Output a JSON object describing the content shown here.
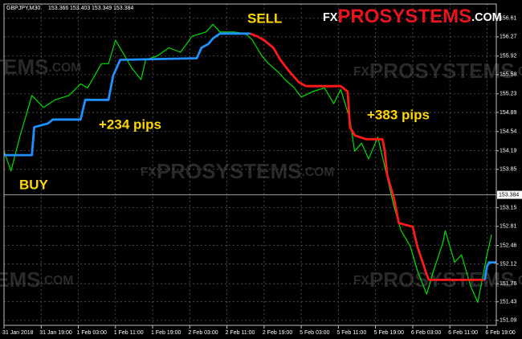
{
  "chart_data": {
    "type": "line",
    "header": {
      "symbol": "GBPJPY,M30",
      "ohlc": [
        153.366,
        153.403,
        153.349,
        153.384
      ]
    },
    "last_price": 153.384,
    "logo": {
      "prefix": "FX",
      "brand": "PROSYSTEMS",
      "suffix": ".COM"
    },
    "annotations": [
      "BUY",
      "+234 pips",
      "SELL",
      "+383 pips"
    ],
    "xlim": [
      0,
      212
    ],
    "xticks": [
      {
        "value": 0,
        "label": "31 Jan 2018"
      },
      {
        "value": 16,
        "label": "31 Jan 19:00"
      },
      {
        "value": 32,
        "label": "1 Feb 03:00"
      },
      {
        "value": 48,
        "label": "1 Feb 11:00"
      },
      {
        "value": 64,
        "label": "1 Feb 19:00"
      },
      {
        "value": 80,
        "label": "2 Feb 03:00"
      },
      {
        "value": 96,
        "label": "2 Feb 11:00"
      },
      {
        "value": 112,
        "label": "2 Feb 19:00"
      },
      {
        "value": 128,
        "label": "5 Feb 03:00"
      },
      {
        "value": 144,
        "label": "5 Feb 11:00"
      },
      {
        "value": 160,
        "label": "5 Feb 19:00"
      },
      {
        "value": 176,
        "label": "6 Feb 03:00"
      },
      {
        "value": 192,
        "label": "6 Feb 11:00"
      },
      {
        "value": 208,
        "label": "6 Feb 19:00"
      }
    ],
    "ylim": [
      151.0,
      156.87
    ],
    "yticks": [
      151.09,
      151.43,
      151.76,
      152.12,
      152.46,
      152.81,
      153.15,
      153.85,
      154.19,
      154.54,
      154.89,
      155.23,
      155.58,
      155.92,
      156.27,
      156.61
    ],
    "grid": true,
    "series": [
      {
        "color": "#00e000",
        "x": [
          0,
          3,
          7,
          12,
          17,
          22,
          28,
          33,
          36,
          42,
          45,
          48,
          52,
          55,
          59,
          61,
          66,
          71,
          76,
          81,
          87,
          90,
          93,
          99,
          104,
          107,
          111,
          114,
          118,
          121,
          125,
          128,
          133,
          138,
          142,
          145,
          149,
          151,
          154,
          157,
          161,
          164,
          168,
          171,
          175,
          178,
          182,
          185,
          189,
          190,
          194,
          197,
          201,
          204,
          208,
          210
        ],
        "values": [
          154.18,
          153.82,
          154.47,
          155.2,
          154.98,
          155.12,
          155.2,
          155.41,
          155.34,
          155.78,
          155.78,
          156.21,
          155.92,
          155.7,
          155.49,
          155.85,
          155.92,
          156.07,
          155.99,
          156.28,
          156.36,
          156.5,
          156.36,
          156.36,
          156.33,
          156.21,
          155.92,
          155.78,
          155.63,
          155.49,
          155.34,
          155.17,
          155.27,
          155.34,
          155.05,
          155.31,
          154.76,
          154.18,
          154.33,
          154.04,
          154.44,
          153.89,
          153.16,
          152.73,
          152.44,
          152.0,
          151.57,
          152.0,
          152.51,
          152.73,
          152.15,
          152.29,
          151.71,
          151.42,
          152.29,
          152.66
        ]
      },
      {
        "color": "#1e90ff",
        "x": [
          0,
          12,
          13,
          19,
          21,
          33,
          35,
          45,
          47,
          50,
          83,
          85,
          88,
          90,
          93,
          106
        ],
        "values": [
          154.11,
          154.11,
          154.62,
          154.69,
          154.76,
          154.76,
          155.12,
          155.12,
          155.56,
          155.85,
          155.88,
          156.07,
          156.14,
          156.24,
          156.33,
          156.33
        ]
      },
      {
        "color": "#ff1a1a",
        "x": [
          106,
          109,
          112,
          116,
          119,
          123,
          127,
          130,
          145,
          148,
          149,
          151,
          156,
          163,
          164,
          165,
          168,
          170,
          176,
          178,
          182,
          183,
          207
        ],
        "values": [
          156.33,
          156.28,
          156.21,
          156.07,
          155.85,
          155.63,
          155.44,
          155.37,
          155.37,
          155.27,
          154.62,
          154.47,
          154.4,
          154.4,
          154.18,
          153.75,
          153.31,
          152.87,
          152.8,
          152.44,
          151.93,
          151.83,
          151.83
        ]
      },
      {
        "color": "#1e90ff",
        "x": [
          207,
          208,
          209,
          212
        ],
        "values": [
          151.83,
          152.08,
          152.15,
          152.15
        ]
      }
    ]
  }
}
